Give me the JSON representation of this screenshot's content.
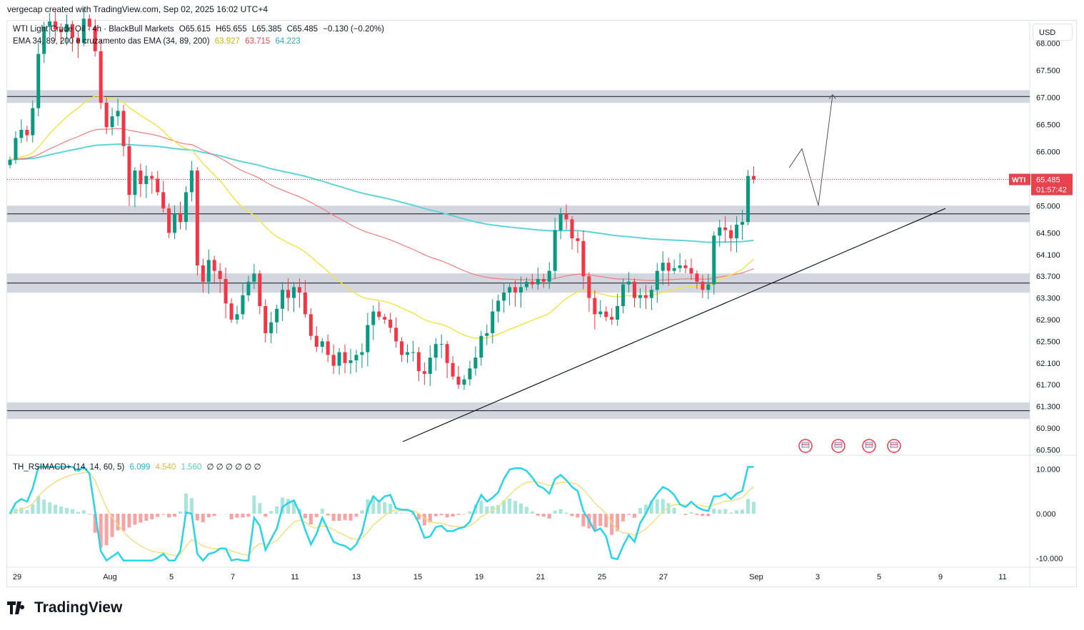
{
  "header": {
    "caption": "vergecap created with TradingView.com, Sep 02, 2025 16:02 UTC+4"
  },
  "legend": {
    "symbol_line": "WTI Light Crude Oil · 4h · BlackBull Markets",
    "ohlc": {
      "o": "O65.615",
      "h": "H65.655",
      "l": "L65.385",
      "c": "C65.485",
      "chg": "−0.130 (−0.20%)"
    },
    "ema_title": "EMA 34, 89, 200 e cruzamento das EMA (34, 89, 200)",
    "ema_values": [
      {
        "value": "63.927",
        "color": "#c9b700"
      },
      {
        "value": "63.715",
        "color": "#e04848"
      },
      {
        "value": "64.223",
        "color": "#3bbfbf"
      }
    ],
    "osc_title": "TH_RSIMACD+ (14, 14, 60, 5)",
    "osc_values": [
      {
        "value": "6.099",
        "color": "#1fb7c9"
      },
      {
        "value": "4.540",
        "color": "#e8d060"
      },
      {
        "value": "1.560",
        "color": "#6fcfc8"
      }
    ],
    "osc_zeros": "∅ ∅ ∅ ∅ ∅ ∅"
  },
  "currency": "USD",
  "price_label": {
    "symbol": "WTI",
    "price": "65.485",
    "countdown": "01:57:42"
  },
  "brand": "TradingView",
  "colors": {
    "up": "#089981",
    "down": "#f23645",
    "ema34": "#f2e44b",
    "ema89": "#f07d7d",
    "ema200": "#5fd3d8",
    "zone": "#d1d4dc",
    "label": "#e8424f"
  },
  "chart_data": {
    "type": "candlestick",
    "timeframe": "4h",
    "y_ticks": [
      "68.000",
      "67.500",
      "67.000",
      "66.500",
      "66.000",
      "65.000",
      "64.500",
      "64.100",
      "63.700",
      "63.300",
      "62.900",
      "62.500",
      "62.100",
      "61.700",
      "61.300",
      "60.900",
      "60.500"
    ],
    "x_ticks": [
      "29",
      "Aug",
      "5",
      "7",
      "11",
      "13",
      "15",
      "19",
      "21",
      "25",
      "27",
      "Sep",
      "3",
      "5",
      "9",
      "11"
    ],
    "ylim": [
      60.4,
      68.4
    ],
    "zones": [
      [
        66.95,
        67.08
      ],
      [
        64.75,
        64.95
      ],
      [
        63.45,
        63.7
      ],
      [
        61.12,
        61.32
      ]
    ],
    "support_line": [
      [
        0,
        60.65
      ],
      [
        1,
        64.95
      ]
    ],
    "projection": [
      65.7,
      66.05,
      65.0,
      67.05
    ],
    "ema_last": {
      "ema34": 63.927,
      "ema89": 63.715,
      "ema200": 64.223
    },
    "closes": [
      65.85,
      66.25,
      66.4,
      66.3,
      66.8,
      67.8,
      68.3,
      68.4,
      68.25,
      68.2,
      68.35,
      68.1,
      68.0,
      68.45,
      68.3,
      67.85,
      66.9,
      66.45,
      66.65,
      66.75,
      66.1,
      65.2,
      65.65,
      65.4,
      65.55,
      65.5,
      65.25,
      64.95,
      64.5,
      64.85,
      64.7,
      65.25,
      65.65,
      63.9,
      63.6,
      64.0,
      63.8,
      63.65,
      63.2,
      62.9,
      63.0,
      63.35,
      63.6,
      63.75,
      63.15,
      62.65,
      62.85,
      63.1,
      63.45,
      63.3,
      63.5,
      63.4,
      63.0,
      62.6,
      62.4,
      62.5,
      62.25,
      62.05,
      62.3,
      62.1,
      62.15,
      62.25,
      62.3,
      62.8,
      63.05,
      62.95,
      62.9,
      62.75,
      62.5,
      62.25,
      62.3,
      62.3,
      61.95,
      61.9,
      62.2,
      62.45,
      62.45,
      62.1,
      61.85,
      61.7,
      61.8,
      62.0,
      62.2,
      62.6,
      62.65,
      63.05,
      63.25,
      63.4,
      63.5,
      63.4,
      63.5,
      63.6,
      63.55,
      63.65,
      63.6,
      63.8,
      64.55,
      64.85,
      64.75,
      64.4,
      64.35,
      63.7,
      63.3,
      63.0,
      63.05,
      62.95,
      62.9,
      63.15,
      63.55,
      63.6,
      63.3,
      63.35,
      63.3,
      63.45,
      63.8,
      63.95,
      63.8,
      63.85,
      63.9,
      63.85,
      63.75,
      63.6,
      63.45,
      63.55,
      64.45,
      64.6,
      64.55,
      64.4,
      64.65,
      64.7,
      65.55,
      65.485
    ],
    "oscillator": {
      "ylim": [
        -12,
        12
      ],
      "ticks": [
        "10.000",
        "0.000",
        "-10.000"
      ],
      "last": [
        6.099,
        4.54,
        1.56
      ]
    }
  }
}
